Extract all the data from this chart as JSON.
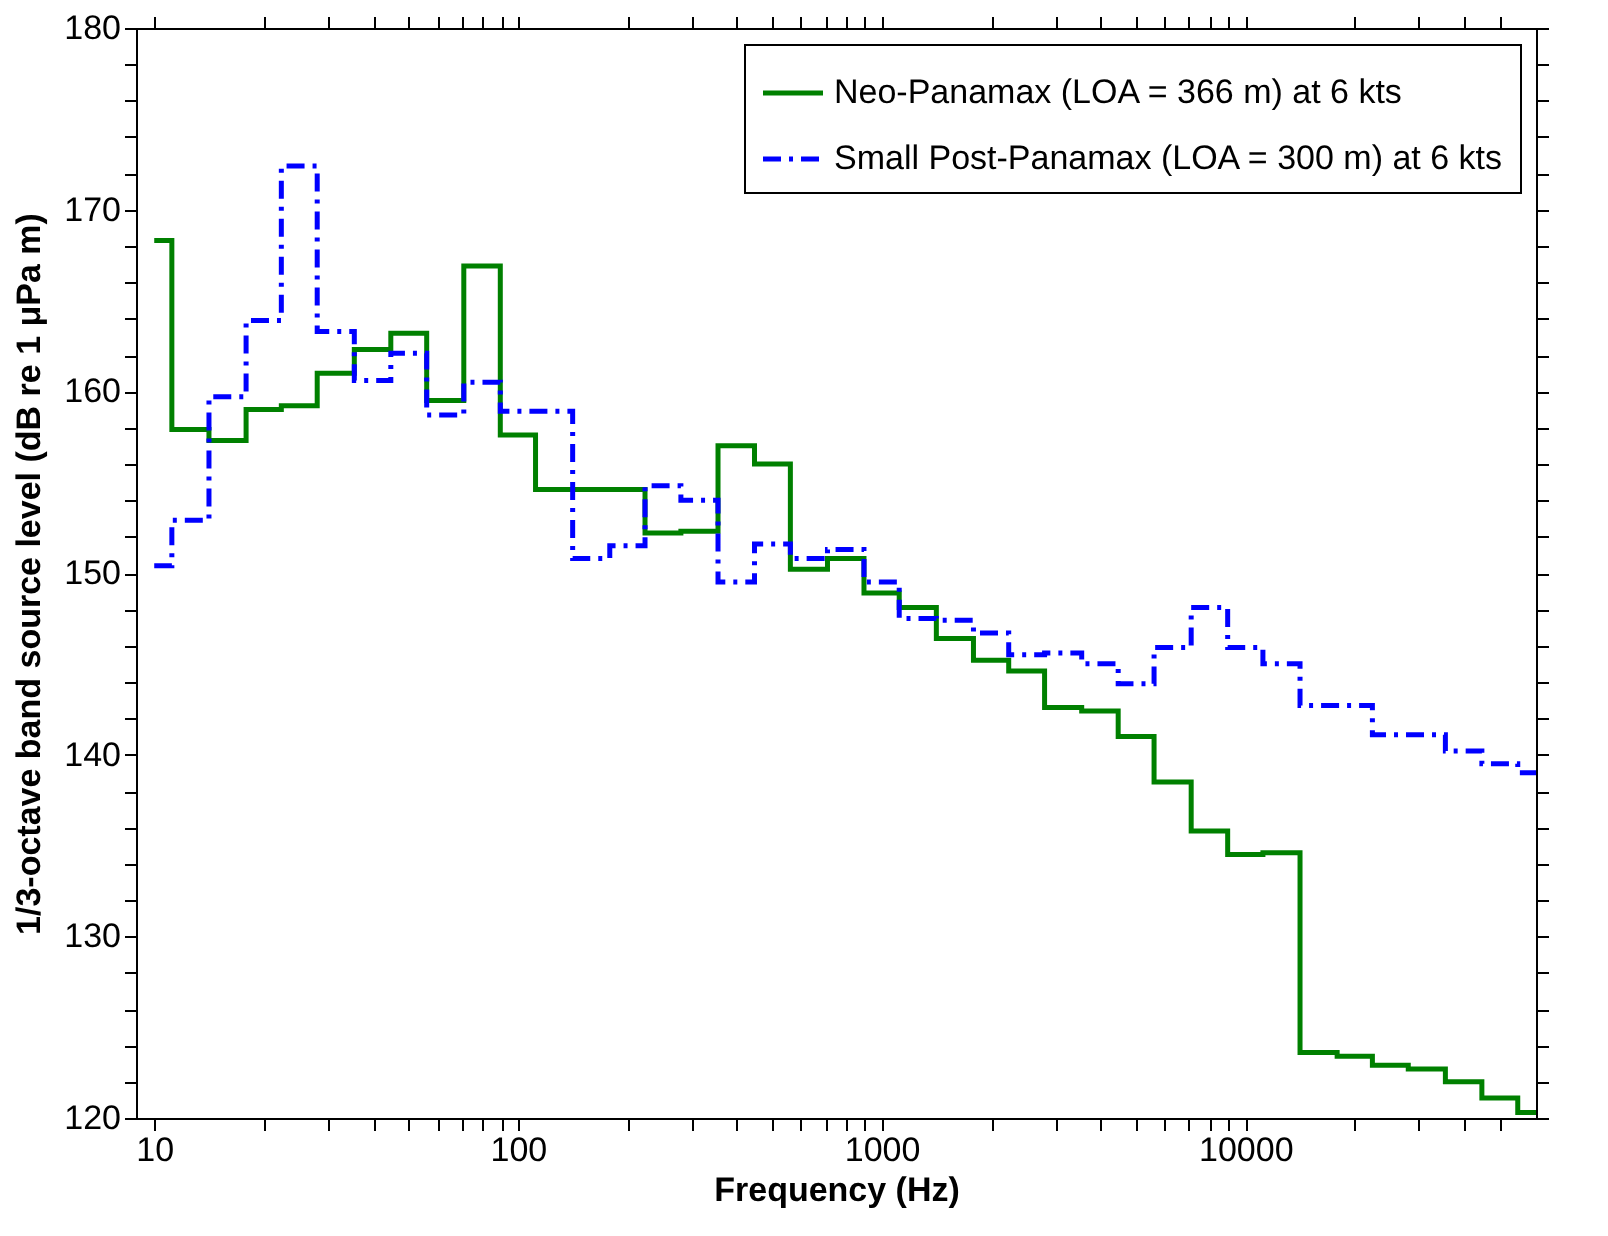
{
  "chart_data": {
    "type": "step",
    "xlabel": "Frequency (Hz)",
    "ylabel": "1/3-octave band source level (dB re 1 μPa m)",
    "log": "x",
    "grid": false,
    "legend": "top right",
    "xlim": [
      8.91,
      63000
    ],
    "ylim": [
      120,
      180
    ],
    "xticks": [
      10,
      {
        "value": 20,
        "label": null
      },
      {
        "value": 30,
        "label": null
      },
      {
        "value": 40,
        "label": null
      },
      {
        "value": 50,
        "label": null
      },
      {
        "value": 60,
        "label": null
      },
      {
        "value": 70,
        "label": null
      },
      {
        "value": 80,
        "label": null
      },
      {
        "value": 90,
        "label": null
      },
      100,
      {
        "value": 200,
        "label": null
      },
      {
        "value": 300,
        "label": null
      },
      {
        "value": 400,
        "label": null
      },
      {
        "value": 500,
        "label": null
      },
      {
        "value": 600,
        "label": null
      },
      {
        "value": 700,
        "label": null
      },
      {
        "value": 800,
        "label": null
      },
      {
        "value": 900,
        "label": null
      },
      1000,
      {
        "value": 2000,
        "label": null
      },
      {
        "value": 3000,
        "label": null
      },
      {
        "value": 4000,
        "label": null
      },
      {
        "value": 5000,
        "label": null
      },
      {
        "value": 6000,
        "label": null
      },
      {
        "value": 7000,
        "label": null
      },
      {
        "value": 8000,
        "label": null
      },
      {
        "value": 9000,
        "label": null
      },
      10000,
      {
        "value": 20000,
        "label": null
      },
      {
        "value": 30000,
        "label": null
      },
      {
        "value": 40000,
        "label": null
      },
      {
        "value": 50000,
        "label": null
      }
    ],
    "yticks": [
      120,
      {
        "value": 122,
        "label": null
      },
      {
        "value": 124,
        "label": null
      },
      {
        "value": 126,
        "label": null
      },
      {
        "value": 128,
        "label": null
      },
      130,
      {
        "value": 132,
        "label": null
      },
      {
        "value": 134,
        "label": null
      },
      {
        "value": 136,
        "label": null
      },
      {
        "value": 138,
        "label": null
      },
      140,
      {
        "value": 142,
        "label": null
      },
      {
        "value": 144,
        "label": null
      },
      {
        "value": 146,
        "label": null
      },
      {
        "value": 148,
        "label": null
      },
      150,
      {
        "value": 152,
        "label": null
      },
      {
        "value": 154,
        "label": null
      },
      {
        "value": 156,
        "label": null
      },
      {
        "value": 158,
        "label": null
      },
      160,
      {
        "value": 162,
        "label": null
      },
      {
        "value": 164,
        "label": null
      },
      {
        "value": 166,
        "label": null
      },
      {
        "value": 168,
        "label": null
      },
      170,
      {
        "value": 172,
        "label": null
      },
      {
        "value": 174,
        "label": null
      },
      {
        "value": 176,
        "label": null
      },
      {
        "value": 178,
        "label": null
      },
      180
    ],
    "x": [
      10,
      12.5,
      16,
      20,
      25,
      31.5,
      40,
      50,
      63,
      80,
      100,
      125,
      160,
      200,
      250,
      315,
      400,
      500,
      630,
      800,
      1000,
      1250,
      1600,
      2000,
      2500,
      3150,
      4000,
      5000,
      6300,
      8000,
      10000,
      12500,
      16000,
      20000,
      25000,
      31500,
      40000,
      50000,
      63000
    ],
    "series": [
      {
        "name": "Neo-Panamax (LOA = 366 m) at 6 kts",
        "color": "#008000",
        "line_style": "solid",
        "values": [
          168.3,
          157.9,
          157.3,
          159.0,
          159.2,
          161.0,
          162.3,
          163.2,
          159.5,
          166.9,
          157.6,
          154.6,
          154.6,
          154.6,
          152.2,
          152.3,
          157.0,
          156.0,
          150.2,
          150.8,
          148.9,
          148.1,
          146.4,
          145.2,
          144.6,
          142.6,
          142.4,
          141.0,
          138.5,
          135.8,
          134.5,
          134.6,
          123.6,
          123.4,
          122.9,
          122.7,
          122.0,
          121.1,
          120.3
        ]
      },
      {
        "name": "Small Post-Panamax (LOA = 300 m) at 6 kts",
        "color": "#0000ff",
        "line_style": "dashdot",
        "values": [
          150.4,
          152.9,
          159.7,
          163.9,
          172.4,
          163.3,
          160.6,
          162.1,
          158.7,
          160.5,
          158.9,
          158.9,
          150.8,
          151.5,
          154.8,
          154.0,
          149.5,
          151.6,
          150.8,
          151.3,
          149.5,
          147.5,
          147.4,
          146.7,
          145.5,
          145.6,
          145.0,
          143.9,
          145.9,
          148.1,
          145.9,
          145.0,
          142.7,
          142.7,
          141.1,
          141.1,
          140.2,
          139.5,
          139.0
        ]
      }
    ]
  }
}
